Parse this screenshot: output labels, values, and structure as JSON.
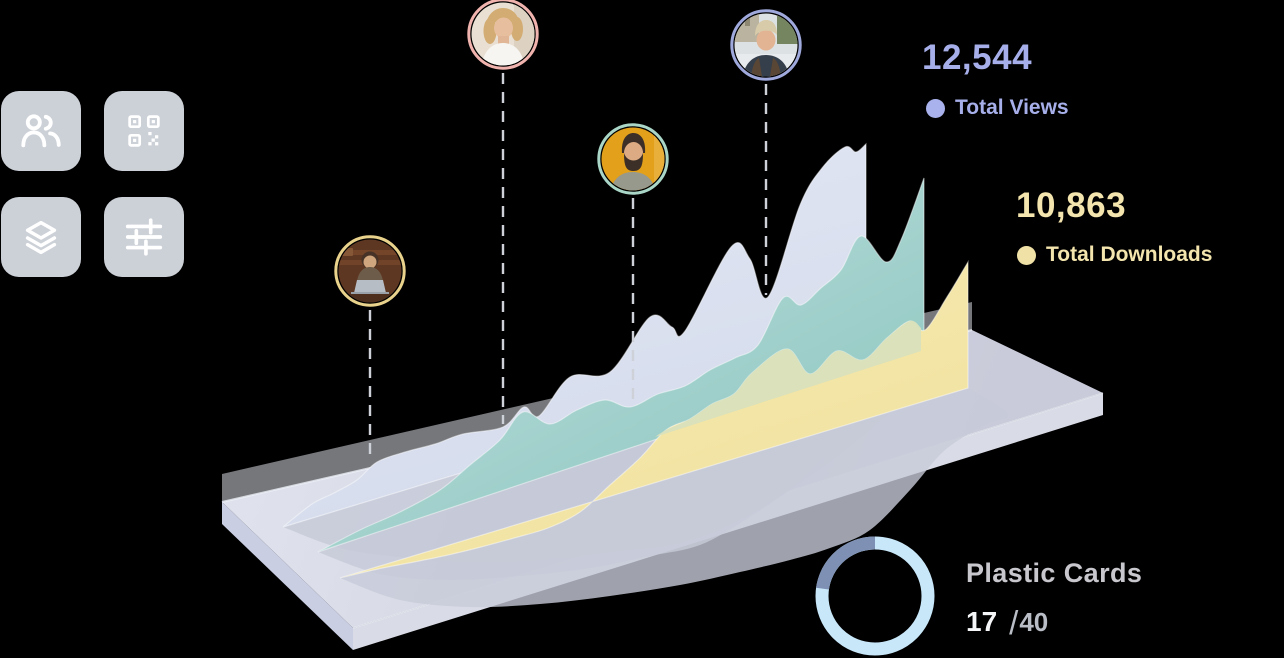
{
  "window": {
    "background": "#000000"
  },
  "toolbar_tiles": {
    "tile_color": "#ccd1d8",
    "icon_color": "#ffffff",
    "items": [
      {
        "name": "users"
      },
      {
        "name": "qr-code"
      },
      {
        "name": "layers"
      },
      {
        "name": "sliders"
      }
    ]
  },
  "stats": {
    "views": {
      "value": "12,544",
      "label": "Total Views",
      "color": "#a6afe9"
    },
    "downloads": {
      "value": "10,863",
      "label": "Total Downloads",
      "color": "#f3e5ad"
    }
  },
  "progress_widget": {
    "title": "Plastic Cards",
    "current": "17",
    "separator": "/",
    "total": "40",
    "ring_color": "#c8e8fa",
    "ring_remainder_color": "#7e90b3"
  },
  "avatars": [
    {
      "name": "man-with-laptop",
      "ring": "#e9d28c"
    },
    {
      "name": "blonde-woman",
      "ring": "#f1b3ae"
    },
    {
      "name": "bearded-man",
      "ring": "#a9d6c7"
    },
    {
      "name": "man-outdoors",
      "ring": "#9fa9dc"
    }
  ],
  "chart_data": {
    "type": "area",
    "style": "3d-perspective-ribbons-on-platform",
    "title": "",
    "axes": {
      "visible": false,
      "gridlines": false,
      "tick_labels": "none"
    },
    "legend": [
      {
        "label": "Total Views",
        "color": "#a6afe9"
      },
      {
        "label": "Total Downloads",
        "color": "#f3e5ad"
      }
    ],
    "series": [
      {
        "name": "Total Views",
        "ribbon_color": "#dbe2f0",
        "total": 12544,
        "relative_profile": [
          1,
          3,
          6,
          9,
          12,
          15,
          18,
          22,
          28,
          26,
          45,
          38,
          62,
          52,
          96,
          100
        ]
      },
      {
        "name": "middle-ribbon",
        "ribbon_color": "#a5d2cd",
        "total": null,
        "relative_profile": [
          1,
          3,
          6,
          9,
          13,
          17,
          21,
          26,
          30,
          36,
          52,
          48,
          57,
          52,
          75,
          100
        ]
      },
      {
        "name": "Total Downloads",
        "ribbon_color": "#f4e6a8",
        "total": 10863,
        "relative_profile": [
          1,
          2,
          4,
          6,
          8,
          11,
          14,
          18,
          30,
          42,
          36,
          44,
          40,
          52,
          58,
          100
        ]
      }
    ],
    "annotations": [
      "4 circular avatar markers with dashed leader lines pointing to ribbon surfaces"
    ],
    "kpis": [
      {
        "value": "12,544",
        "label": "Total Views"
      },
      {
        "value": "10,863",
        "label": "Total Downloads"
      }
    ]
  }
}
